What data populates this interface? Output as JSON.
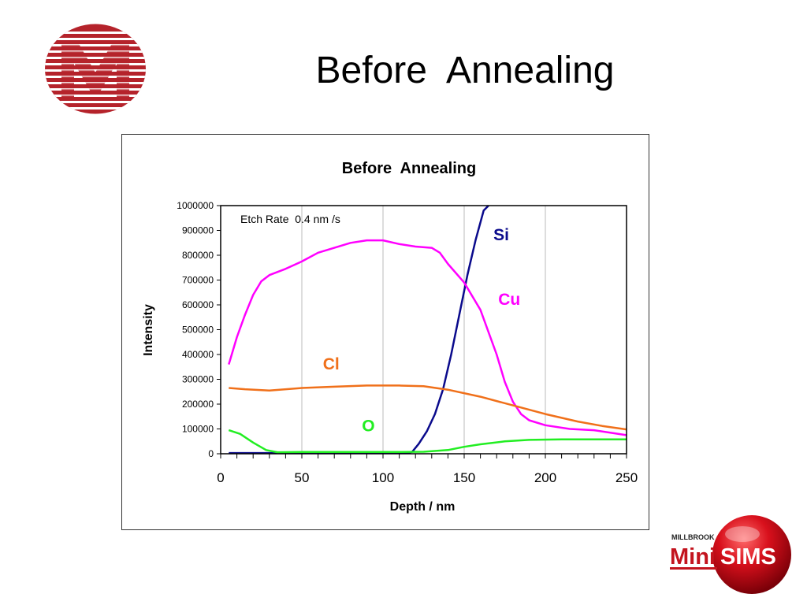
{
  "slide": {
    "title": "Before  Annealing"
  },
  "brand": {
    "minisims_top": "MILLBROOK",
    "minisims_left": "Mini",
    "minisims_right": "SIMS",
    "logo_color": "#b5232b"
  },
  "chart_data": {
    "type": "line",
    "title": "Before  Annealing",
    "annotation": "Etch Rate  0.4 nm /s",
    "xlabel": "Depth / nm",
    "ylabel": "Intensity",
    "xlim": [
      0,
      250
    ],
    "ylim": [
      0,
      1000000
    ],
    "xticks": [
      0,
      50,
      100,
      150,
      200,
      250
    ],
    "yticks": [
      0,
      100000,
      200000,
      300000,
      400000,
      500000,
      600000,
      700000,
      800000,
      900000,
      1000000
    ],
    "ytick_labels": [
      "0",
      "100000",
      "200000",
      "300000",
      "400000",
      "500000",
      "600000",
      "700000",
      "800000",
      "900000",
      "1000000"
    ],
    "grid": "vertical",
    "series": [
      {
        "name": "Si",
        "color": "#0a0a8c",
        "label_pos": [
          168,
          860000
        ],
        "points": [
          [
            5,
            3000
          ],
          [
            20,
            3000
          ],
          [
            40,
            3000
          ],
          [
            60,
            3000
          ],
          [
            80,
            3000
          ],
          [
            100,
            3000
          ],
          [
            115,
            3000
          ],
          [
            118,
            8000
          ],
          [
            122,
            40000
          ],
          [
            127,
            90000
          ],
          [
            132,
            160000
          ],
          [
            137,
            260000
          ],
          [
            142,
            400000
          ],
          [
            147,
            560000
          ],
          [
            152,
            720000
          ],
          [
            157,
            860000
          ],
          [
            162,
            980000
          ],
          [
            165,
            1000000
          ]
        ]
      },
      {
        "name": "Cu",
        "color": "#ff00ff",
        "label_pos": [
          171,
          600000
        ],
        "points": [
          [
            5,
            360000
          ],
          [
            10,
            470000
          ],
          [
            15,
            560000
          ],
          [
            20,
            640000
          ],
          [
            25,
            695000
          ],
          [
            30,
            720000
          ],
          [
            40,
            745000
          ],
          [
            50,
            775000
          ],
          [
            60,
            810000
          ],
          [
            70,
            830000
          ],
          [
            80,
            850000
          ],
          [
            90,
            860000
          ],
          [
            100,
            860000
          ],
          [
            110,
            845000
          ],
          [
            120,
            835000
          ],
          [
            130,
            830000
          ],
          [
            135,
            810000
          ],
          [
            140,
            765000
          ],
          [
            150,
            690000
          ],
          [
            160,
            580000
          ],
          [
            170,
            400000
          ],
          [
            175,
            290000
          ],
          [
            180,
            210000
          ],
          [
            185,
            160000
          ],
          [
            190,
            135000
          ],
          [
            200,
            115000
          ],
          [
            215,
            100000
          ],
          [
            230,
            95000
          ],
          [
            250,
            75000
          ]
        ]
      },
      {
        "name": "Cl",
        "color": "#f0701a",
        "label_pos": [
          63,
          340000
        ],
        "points": [
          [
            5,
            265000
          ],
          [
            15,
            260000
          ],
          [
            30,
            255000
          ],
          [
            50,
            265000
          ],
          [
            70,
            270000
          ],
          [
            90,
            275000
          ],
          [
            110,
            275000
          ],
          [
            125,
            272000
          ],
          [
            140,
            258000
          ],
          [
            160,
            230000
          ],
          [
            180,
            195000
          ],
          [
            200,
            160000
          ],
          [
            220,
            130000
          ],
          [
            235,
            112000
          ],
          [
            250,
            98000
          ]
        ]
      },
      {
        "name": "O",
        "color": "#22ee22",
        "label_pos": [
          87,
          90000
        ],
        "points": [
          [
            5,
            95000
          ],
          [
            12,
            80000
          ],
          [
            20,
            45000
          ],
          [
            28,
            15000
          ],
          [
            35,
            6000
          ],
          [
            50,
            7000
          ],
          [
            80,
            7000
          ],
          [
            110,
            7000
          ],
          [
            125,
            8000
          ],
          [
            140,
            15000
          ],
          [
            150,
            28000
          ],
          [
            160,
            38000
          ],
          [
            175,
            50000
          ],
          [
            190,
            56000
          ],
          [
            210,
            58000
          ],
          [
            250,
            58000
          ]
        ]
      }
    ]
  }
}
